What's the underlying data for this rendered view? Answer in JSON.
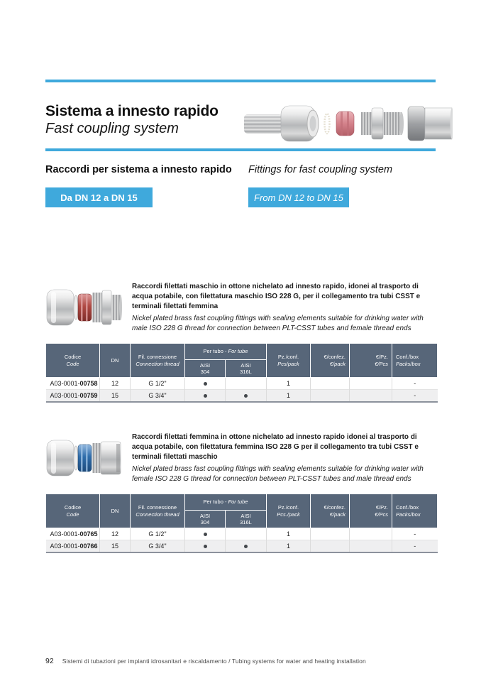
{
  "colors": {
    "accent_blue": "#3FA9DC",
    "table_header": "#576679",
    "row_alt": "#EFEFF0",
    "seal_red": "#B04A44",
    "seal_blue": "#2F6DAB"
  },
  "header": {
    "title_it": "Sistema a innesto rapido",
    "title_en": "Fast coupling system"
  },
  "intro": {
    "heading_it": "Raccordi per sistema a innesto rapido",
    "heading_en": "Fittings for fast coupling system",
    "badge_it": "Da DN 12 a DN 15",
    "badge_en": "From DN 12 to DN 15"
  },
  "products": [
    {
      "image": "male-fitting-with-red-seal",
      "desc_it": "Raccordi filettati maschio in ottone nichelato ad innesto rapido, idonei al trasporto di acqua potabile, con filettatura maschio ISO 228 G, per il collegamento tra tubi CSST e terminali filettati femmina",
      "desc_en": "Nickel plated brass fast coupling fittings with sealing elements suitable for drinking water with male ISO 228 G thread for connection between PLT-CSST tubes and female thread ends",
      "table": {
        "headers": {
          "code_it": "Codice",
          "code_en": "Code",
          "dn": "DN",
          "thread_it": "Fil. connessione",
          "thread_en": "Connection thread",
          "tube_it": "Per tubo -",
          "tube_en": "For tube",
          "aisi304": [
            "AISI",
            "304"
          ],
          "aisi316l": [
            "AISI",
            "316L"
          ],
          "qty_it": "Pz./conf.",
          "qty_en": "Pcs/pack",
          "eur_pack_it": "€/confez.",
          "eur_pack_en": "€/pack",
          "eur_pcs_it": "€/Pz.",
          "eur_pcs_en": "€/Pcs",
          "box_it": "Conf./box",
          "box_en": "Packs/box"
        },
        "rows": [
          {
            "code_prefix": "A03-0001-",
            "code_bold": "00758",
            "dn": "12",
            "thread": "G 1/2\"",
            "aisi_304": "●",
            "aisi_316l": "",
            "pcs_pack": "1",
            "eur_pack": "",
            "eur_pcs": "",
            "packs_box": "-"
          },
          {
            "code_prefix": "A03-0001-",
            "code_bold": "00759",
            "dn": "15",
            "thread": "G 3/4\"",
            "aisi_304": "●",
            "aisi_316l": "●",
            "pcs_pack": "1",
            "eur_pack": "",
            "eur_pcs": "",
            "packs_box": "-"
          }
        ]
      }
    },
    {
      "image": "female-fitting-with-blue-seal",
      "desc_it": "Raccordi filettati femmina in ottone nichelato ad innesto rapido idonei al trasporto di acqua potabile, con filettatura femmina ISO 228 G per il collegamento tra tubi CSST e terminali filettati maschio",
      "desc_en": "Nickel plated brass fast coupling fittings with sealing elements suitable for drinking water with female ISO 228 G thread for connection between PLT-CSST tubes and male thread ends",
      "table": {
        "headers": {
          "code_it": "Codice",
          "code_en": "Code",
          "dn": "DN",
          "thread_it": "Fil. connessione",
          "thread_en": "Connection thread",
          "tube_it": "Per tubo -",
          "tube_en": "For tube",
          "aisi304": [
            "AISI",
            "304"
          ],
          "aisi316l": [
            "AISI",
            "316L"
          ],
          "qty_it": "Pz./conf.",
          "qty_en": "Pcs./pack",
          "eur_pack_it": "€/confez.",
          "eur_pack_en": "€/pack",
          "eur_pcs_it": "€/Pz.",
          "eur_pcs_en": "€/Pcs",
          "box_it": "Conf./box",
          "box_en": "Packs/box"
        },
        "rows": [
          {
            "code_prefix": "A03-0001-",
            "code_bold": "00765",
            "dn": "12",
            "thread": "G 1/2\"",
            "aisi_304": "●",
            "aisi_316l": "",
            "pcs_pack": "1",
            "eur_pack": "",
            "eur_pcs": "",
            "packs_box": "-"
          },
          {
            "code_prefix": "A03-0001-",
            "code_bold": "00766",
            "dn": "15",
            "thread": "G 3/4\"",
            "aisi_304": "●",
            "aisi_316l": "●",
            "pcs_pack": "1",
            "eur_pack": "",
            "eur_pcs": "",
            "packs_box": "-"
          }
        ]
      }
    }
  ],
  "footer": {
    "page_number": "92",
    "text": "Sistemi di tubazioni per impianti idrosanitari e riscaldamento / Tubing systems for water and heating installation"
  }
}
